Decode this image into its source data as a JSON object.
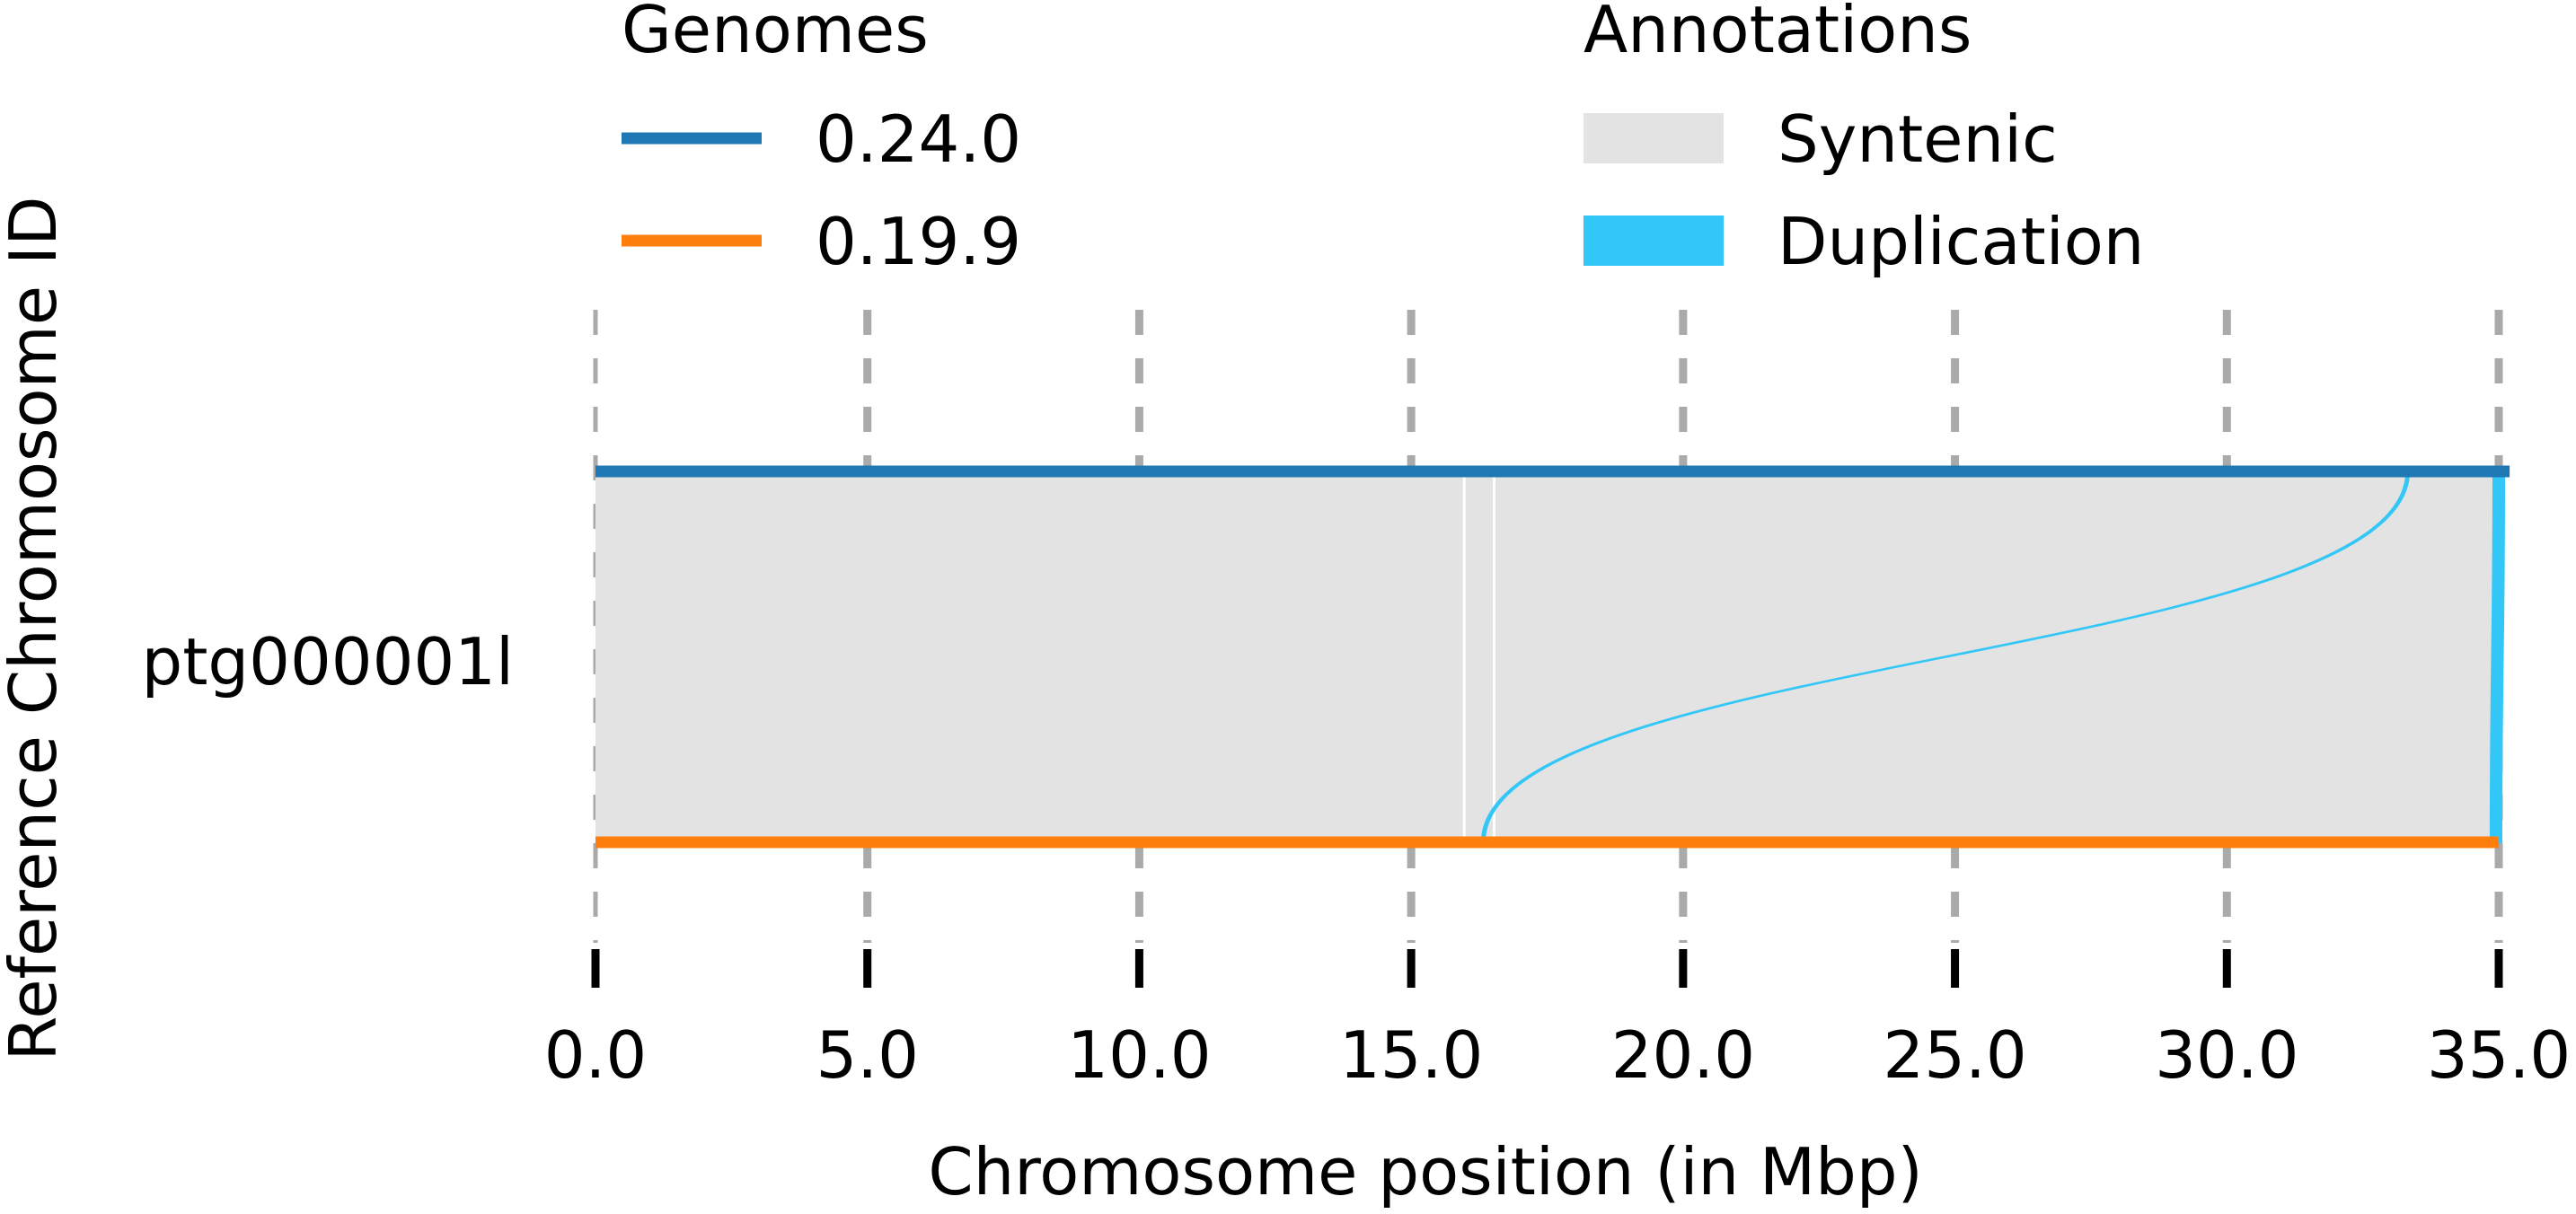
{
  "chart_data": {
    "type": "synteny",
    "xlabel": "Chromosome position (in Mbp)",
    "ylabel": "Reference Chromosome ID",
    "xlim": [
      0.0,
      35.0
    ],
    "x_ticks": [
      "0.0",
      "5.0",
      "10.0",
      "15.0",
      "20.0",
      "25.0",
      "30.0",
      "35.0"
    ],
    "x_tick_values": [
      0,
      5,
      10,
      15,
      20,
      25,
      30,
      35
    ],
    "grid": true,
    "chromosomes": [
      "ptg000001l"
    ],
    "legend_genomes": {
      "title": "Genomes",
      "items": [
        {
          "label": "0.24.0",
          "color": "#1f77b4"
        },
        {
          "label": "0.19.9",
          "color": "#ff7f0e"
        }
      ]
    },
    "legend_annotations": {
      "title": "Annotations",
      "items": [
        {
          "label": "Syntenic",
          "color": "#e3e3e3"
        },
        {
          "label": "Duplication",
          "color": "#33c7f7"
        }
      ]
    },
    "genomes": [
      {
        "name": "0.24.0",
        "chromosome": "ptg000001l",
        "start": 0.0,
        "end": 35.2,
        "color": "#1f77b4"
      },
      {
        "name": "0.19.9",
        "chromosome": "ptg000001l",
        "start": 0.0,
        "end": 35.0,
        "color": "#ff7f0e"
      }
    ],
    "syntenic_blocks": [
      {
        "top_start": 0.0,
        "top_end": 15.95,
        "bottom_start": 0.0,
        "bottom_end": 15.95
      },
      {
        "top_start": 16.0,
        "top_end": 16.5,
        "bottom_start": 16.0,
        "bottom_end": 16.5
      },
      {
        "top_start": 16.55,
        "top_end": 34.9,
        "bottom_start": 16.55,
        "bottom_end": 34.85
      }
    ],
    "duplications": [
      {
        "top_start": 33.3,
        "top_end": 33.35,
        "bottom_start": 16.3,
        "bottom_end": 16.35
      },
      {
        "top_start": 34.9,
        "top_end": 35.1,
        "bottom_start": 34.85,
        "bottom_end": 35.05
      }
    ]
  }
}
